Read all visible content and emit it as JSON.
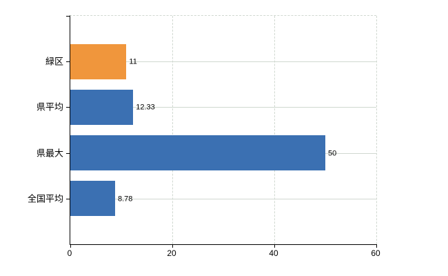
{
  "chart_data": {
    "type": "bar",
    "orientation": "horizontal",
    "title": "",
    "xlabel": "",
    "ylabel": "",
    "categories": [
      "緑区",
      "県平均",
      "県最大",
      "全国平均"
    ],
    "values": [
      11,
      12.33,
      50,
      8.78
    ],
    "value_labels": [
      "11",
      "12.33",
      "50",
      "8.78"
    ],
    "bar_colors": [
      "#f0963c",
      "#3b70b2",
      "#3b70b2",
      "#3b70b2"
    ],
    "x_ticks": [
      0,
      20,
      40,
      60
    ],
    "x_tick_labels": [
      "0",
      "20",
      "40",
      "60"
    ],
    "xlim": [
      0,
      60
    ],
    "grid": true,
    "legend": false
  },
  "colors": {
    "background": "#ffffff",
    "axis": "#000000",
    "gridline": "#d0d8d0",
    "text": "#000000",
    "bar_blue": "#3b70b2",
    "bar_orange": "#f0963c"
  }
}
